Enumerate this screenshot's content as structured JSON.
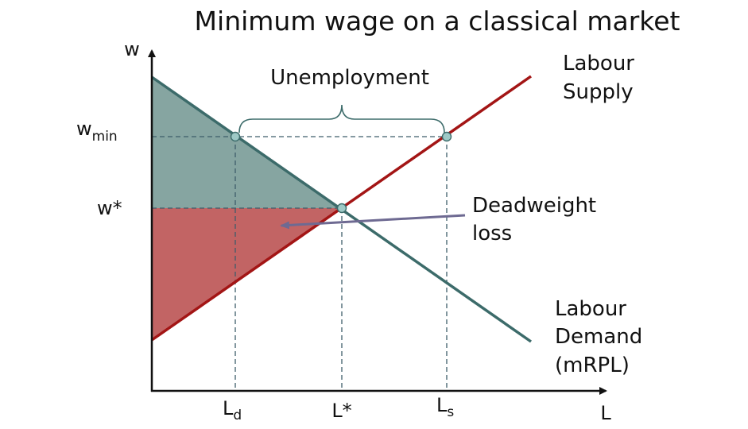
{
  "title": "Minimum wage on a classical market",
  "axes": {
    "y_label": "w",
    "x_label": "L"
  },
  "y_ticks": {
    "wmin_base": "w",
    "wmin_sub": "min",
    "wstar": "w*"
  },
  "x_ticks": {
    "ld_base": "L",
    "ld_sub": "d",
    "lstar": "L*",
    "ls_base": "L",
    "ls_sub": "s"
  },
  "annotations": {
    "unemployment": "Unemployment",
    "supply_line1": "Labour",
    "supply_line2": "Supply",
    "demand_line1": "Labour",
    "demand_line2": "Demand",
    "demand_line3": "(mRPL)",
    "deadweight_line1": "Deadweight",
    "deadweight_line2": "loss"
  },
  "colors": {
    "supply": "#a31515",
    "demand": "#3c6b6a",
    "upper_area": "#86a5a1",
    "lower_area": "#c26464",
    "arrow": "#6e6a92",
    "point_fill": "#9ec9c6",
    "guide": "#3e5d6a",
    "axis": "#111111"
  }
}
